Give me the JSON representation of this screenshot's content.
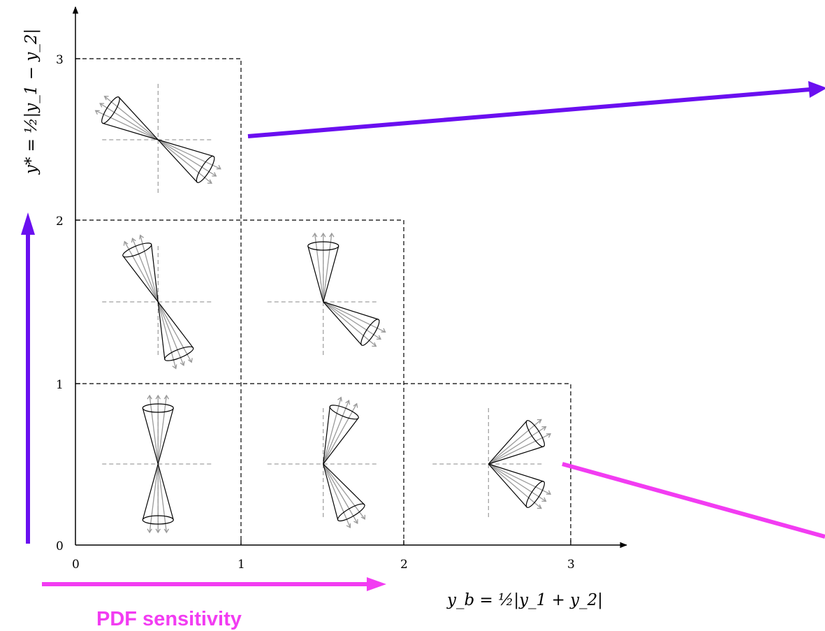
{
  "diagram": {
    "axes": {
      "x_ticks": [
        "0",
        "1",
        "2",
        "3"
      ],
      "y_ticks": [
        "0",
        "1",
        "2",
        "3"
      ],
      "x_label": "y_b = ½|y_1 + y_2|",
      "y_label": "y* = ½|y_1 − y_2|"
    },
    "annotations": {
      "pdf_sensitivity": "PDF sensitivity"
    },
    "colors": {
      "purple_arrow": "#6a0ff0",
      "magenta_arrow": "#f23cf2",
      "jet_arrows": "#999999",
      "guides": "#888888"
    },
    "cells": [
      {
        "yb_bin": "0-1",
        "ystar_bin": "0-1",
        "jet1_angle_deg": 90,
        "jet2_angle_deg": 270
      },
      {
        "yb_bin": "1-2",
        "ystar_bin": "0-1",
        "jet1_angle_deg": 68,
        "jet2_angle_deg": 300
      },
      {
        "yb_bin": "2-3",
        "ystar_bin": "0-1",
        "jet1_angle_deg": 33,
        "jet2_angle_deg": 327
      },
      {
        "yb_bin": "0-1",
        "ystar_bin": "1-2",
        "jet1_angle_deg": 112,
        "jet2_angle_deg": 292
      },
      {
        "yb_bin": "1-2",
        "ystar_bin": "1-2",
        "jet1_angle_deg": 90,
        "jet2_angle_deg": 327
      },
      {
        "yb_bin": "0-1",
        "ystar_bin": "2-3",
        "jet1_angle_deg": 148,
        "jet2_angle_deg": 328
      }
    ]
  }
}
